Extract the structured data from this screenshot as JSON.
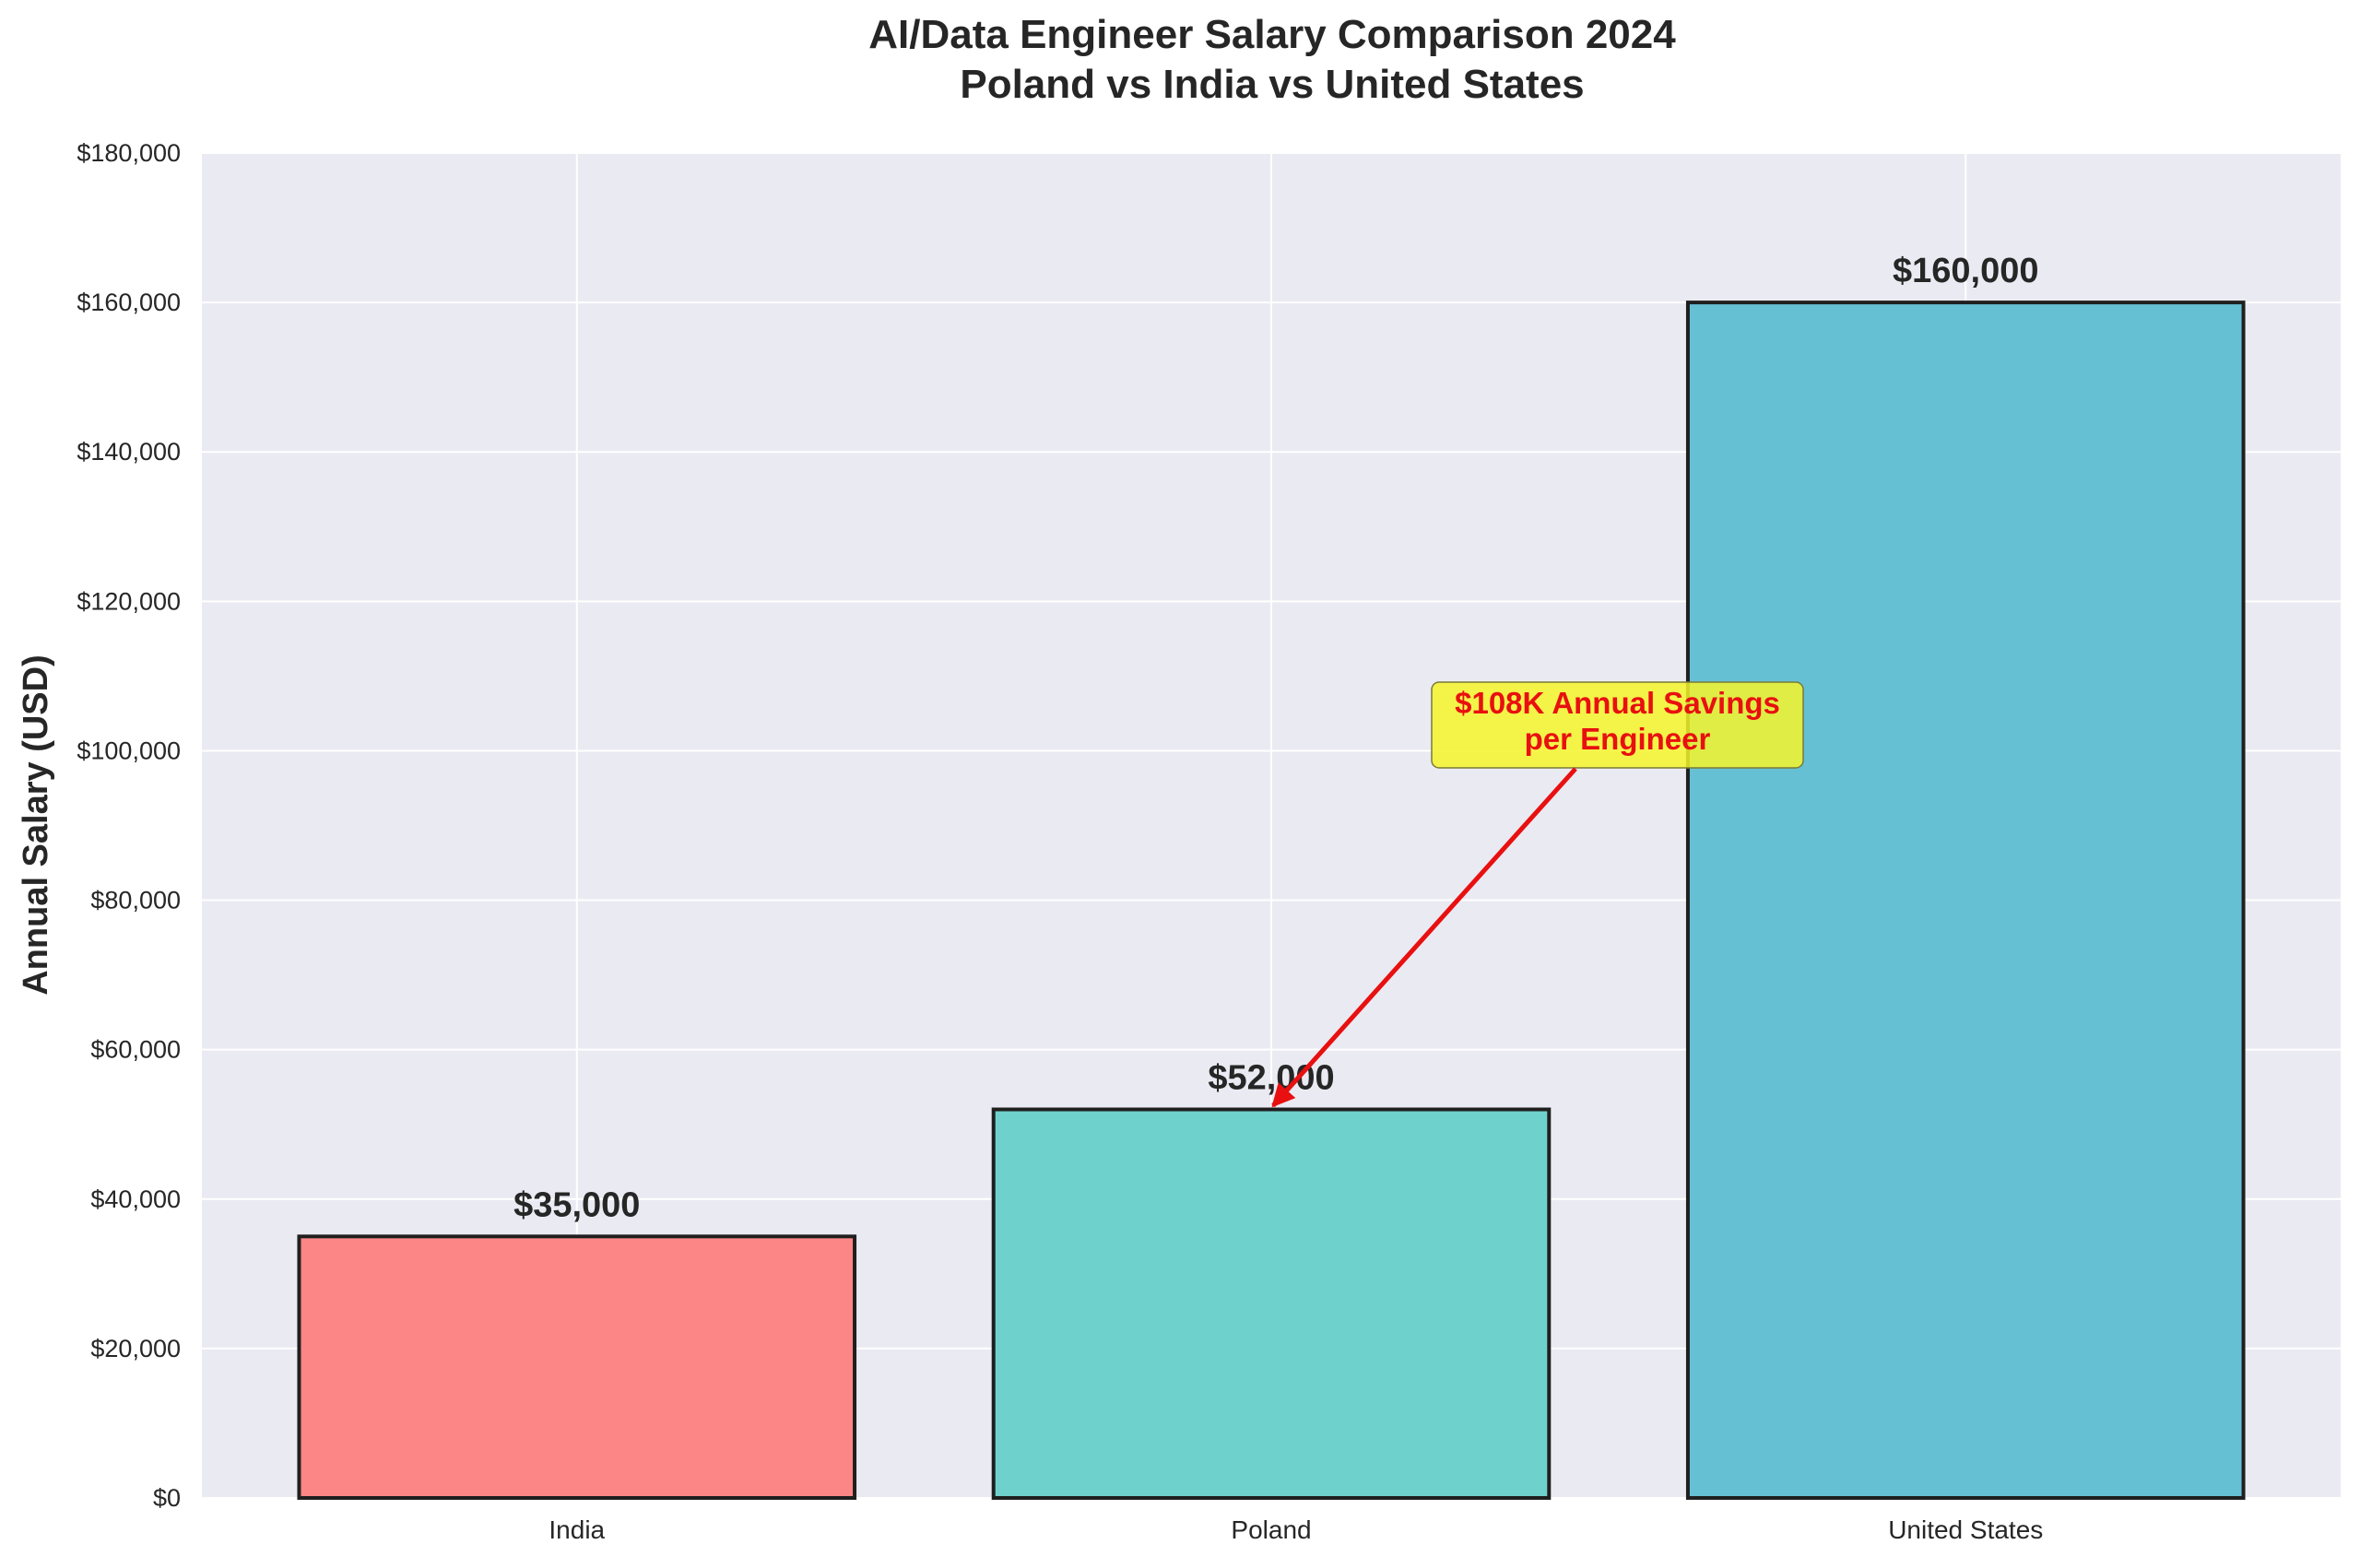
{
  "chart_data": {
    "type": "bar",
    "title_lines": [
      "AI/Data Engineer Salary Comparison 2024",
      "Poland vs India vs United States"
    ],
    "xlabel": "",
    "ylabel": "Annual Salary (USD)",
    "categories": [
      "India",
      "Poland",
      "United States"
    ],
    "values": [
      35000,
      52000,
      160000
    ],
    "value_labels": [
      "$35,000",
      "$52,000",
      "$160,000"
    ],
    "ylim": [
      0,
      180000
    ],
    "yticks": [
      0,
      20000,
      40000,
      60000,
      80000,
      100000,
      120000,
      140000,
      160000,
      180000
    ],
    "ytick_labels": [
      "$0",
      "$20,000",
      "$40,000",
      "$60,000",
      "$80,000",
      "$100,000",
      "$120,000",
      "$140,000",
      "$160,000",
      "$180,000"
    ],
    "colors": [
      "#fc8686",
      "#6fd1cc",
      "#65c0d4"
    ],
    "grid": true,
    "annotation": {
      "lines": [
        "$108K Annual Savings",
        "per Engineer"
      ],
      "text_color": "#e81010",
      "box_color": "#f5f52a",
      "text_position": [
        1.55,
        102000
      ],
      "target": [
        1.0,
        52500
      ],
      "arrow_color": "#e81010"
    }
  },
  "style": {
    "plot_background": "#eaeaf2",
    "grid_color": "#ffffff",
    "text_color": "#262626",
    "bar_edge_color": "#1f1f1f"
  }
}
